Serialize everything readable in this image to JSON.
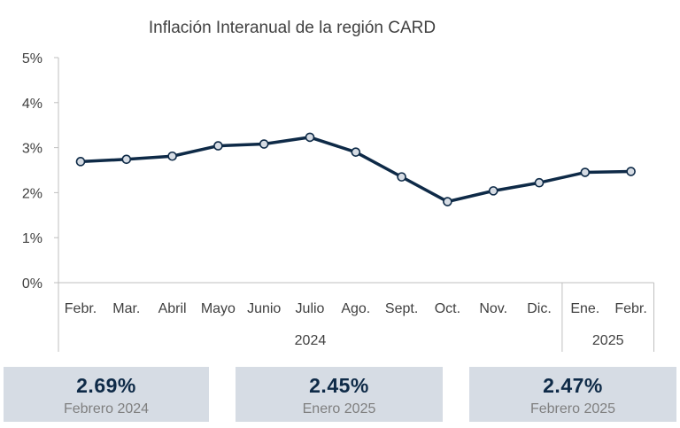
{
  "colors": {
    "line": "#0e2a47",
    "marker_fill": "#d6dce4",
    "axis": "#bfbfbf",
    "card_bg": "#d6dce4",
    "card_value": "#0e2a47",
    "card_label": "#7f7f7f"
  },
  "chart_data": {
    "type": "line",
    "title": "Inflación Interanual de la región CARD",
    "xlabel": "",
    "ylabel": "",
    "categories": [
      "Febr.",
      "Mar.",
      "Abril",
      "Mayo",
      "Junio",
      "Julio",
      "Ago.",
      "Sept.",
      "Oct.",
      "Nov.",
      "Dic.",
      "Ene.",
      "Febr."
    ],
    "year_groups": [
      {
        "label": "2024",
        "count": 11
      },
      {
        "label": "2025",
        "count": 2
      }
    ],
    "series": [
      {
        "values": [
          2.69,
          2.74,
          2.81,
          3.04,
          3.08,
          3.23,
          2.9,
          2.35,
          1.8,
          2.04,
          2.22,
          2.45,
          2.47
        ]
      }
    ],
    "ylim": [
      0,
      5
    ],
    "yticks": [
      0,
      1,
      2,
      3,
      4,
      5
    ],
    "ytick_labels": [
      "0%",
      "1%",
      "2%",
      "3%",
      "4%",
      "5%"
    ],
    "grid": false,
    "legend": "none"
  },
  "cards": [
    {
      "value": "2.69%",
      "label": "Febrero 2024"
    },
    {
      "value": "2.45%",
      "label": "Enero 2025"
    },
    {
      "value": "2.47%",
      "label": "Febrero 2025"
    }
  ]
}
